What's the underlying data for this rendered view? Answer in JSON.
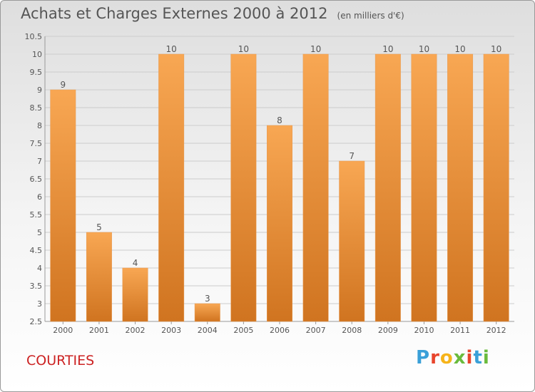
{
  "title": "Achats et Charges Externes 2000 à 2012",
  "unit": "(en milliers d'€)",
  "commune": "COURTIES",
  "logo": "Proxiti",
  "colors": {
    "bar_top": "#f8a753",
    "bar_bottom": "#d07420",
    "bar_edge": "#e89a50",
    "grid": "#cccccc",
    "text": "#555555"
  },
  "chart_data": {
    "type": "bar",
    "title": "Achats et Charges Externes 2000 à 2012",
    "subtitle": "(en milliers d'€)",
    "categories": [
      "2000",
      "2001",
      "2002",
      "2003",
      "2004",
      "2005",
      "2006",
      "2007",
      "2008",
      "2009",
      "2010",
      "2011",
      "2012"
    ],
    "values": [
      9,
      5,
      4,
      10,
      3,
      10,
      8,
      10,
      7,
      10,
      10,
      10,
      10
    ],
    "data_labels": [
      "9",
      "5",
      "4",
      "10",
      "3",
      "10",
      "8",
      "10",
      "7",
      "10",
      "10",
      "10",
      "10"
    ],
    "ylim": [
      2.5,
      10.5
    ],
    "yticks": [
      2.5,
      3,
      3.5,
      4,
      4.5,
      5,
      5.5,
      6,
      6.5,
      7,
      7.5,
      8,
      8.5,
      9,
      9.5,
      10,
      10.5
    ],
    "grid": true,
    "xlabel": "",
    "ylabel": ""
  }
}
